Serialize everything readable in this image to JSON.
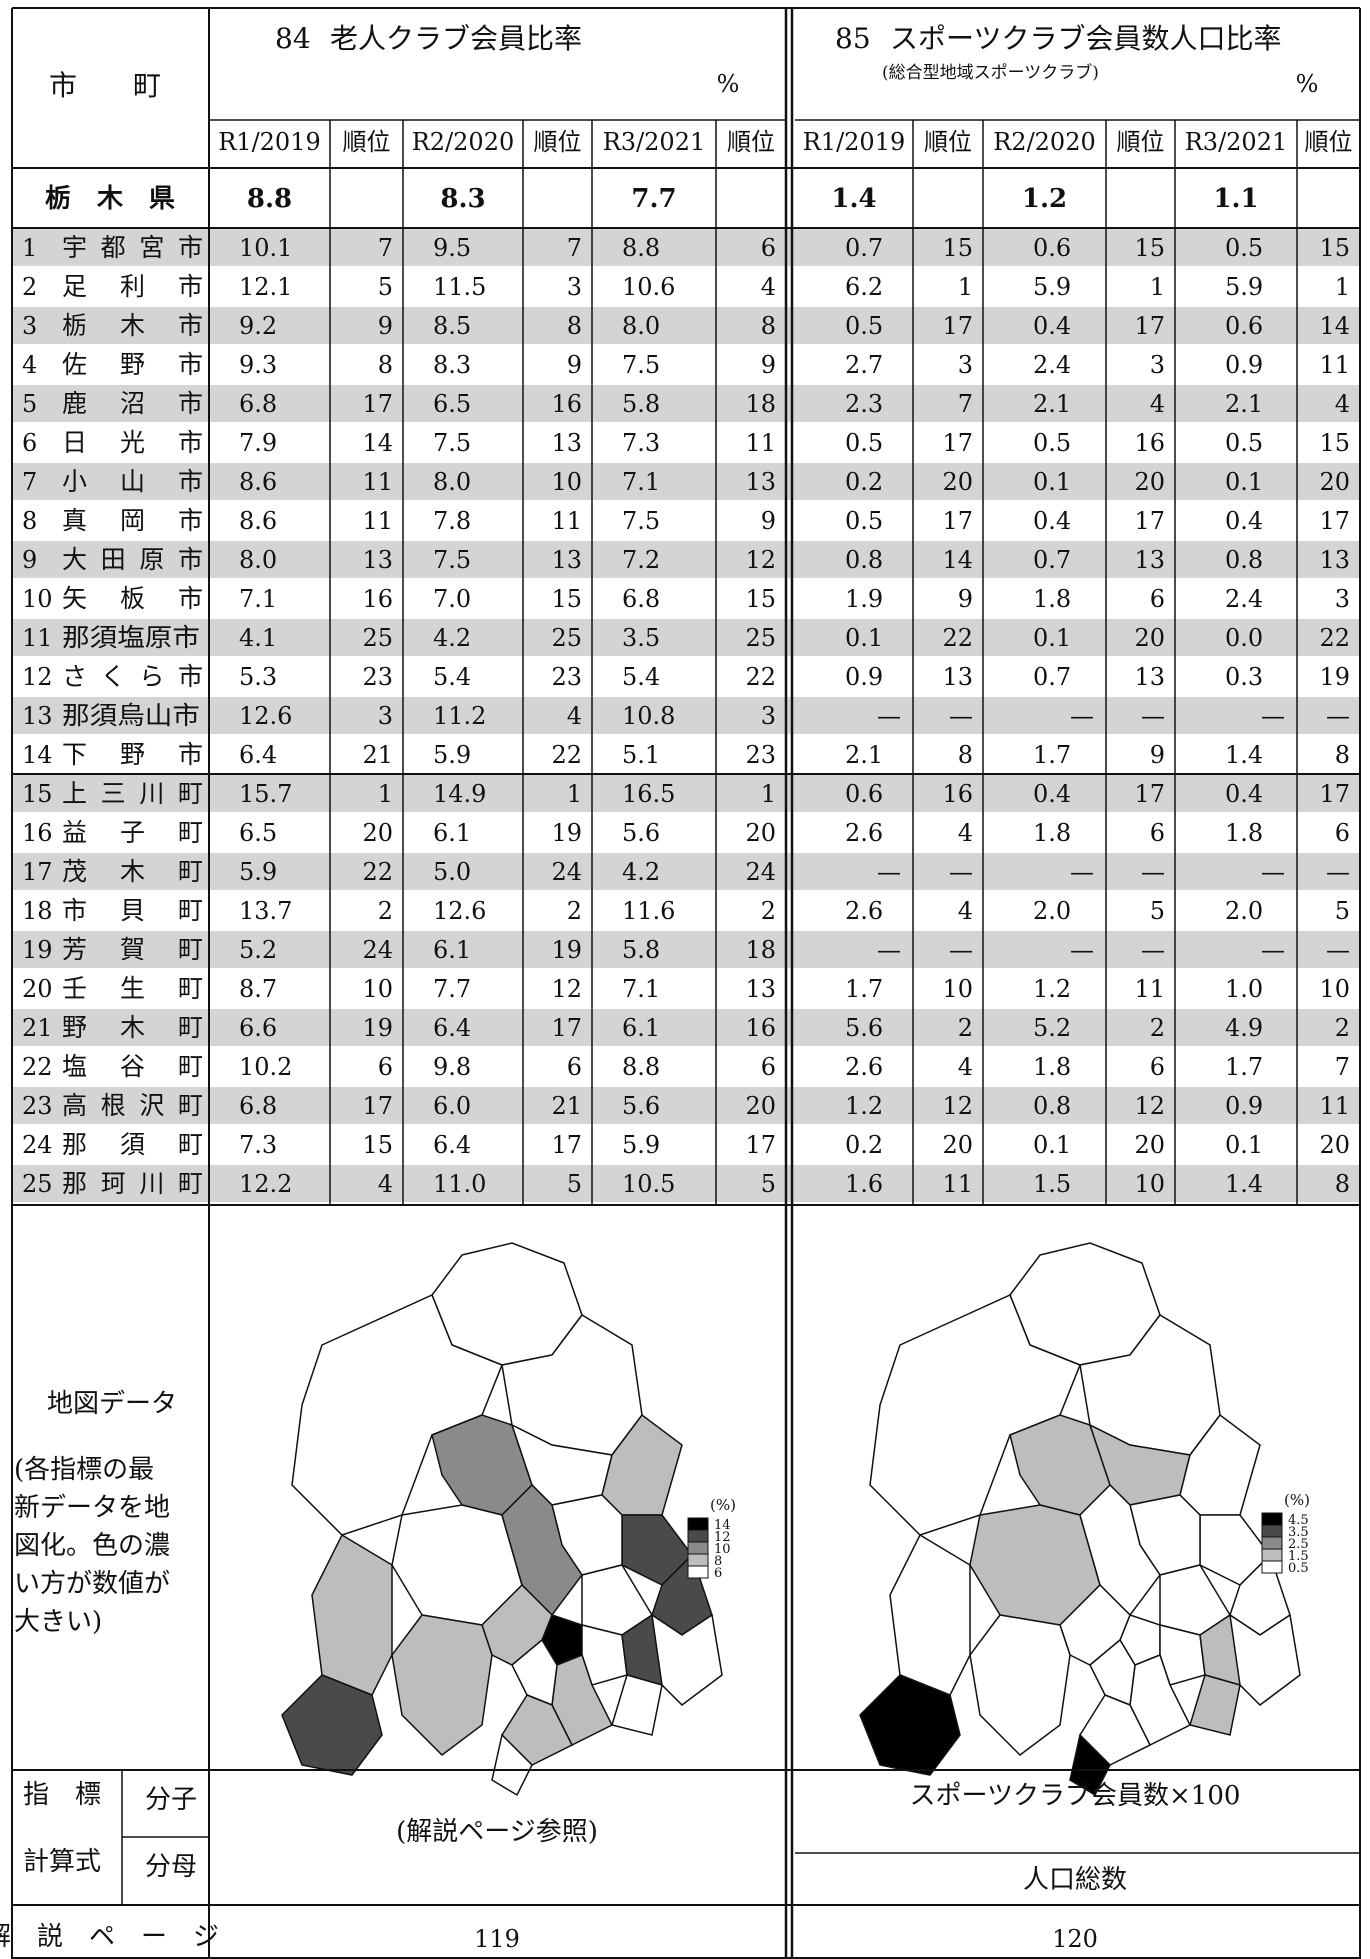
{
  "header": {
    "col_label": "市　　町",
    "ind1_num": "84",
    "ind1_title": "老人クラブ会員比率",
    "ind1_unit": "%",
    "ind2_num": "85",
    "ind2_title": "スポーツクラブ会員数人口比率",
    "ind2_subtitle": "(総合型地域スポーツクラブ)",
    "ind2_unit": "%",
    "years": [
      "R1/2019",
      "R2/2020",
      "R3/2021"
    ],
    "rank_label": "順位"
  },
  "prefecture": {
    "name": "栃　木　県",
    "ind1": [
      "8.8",
      "8.3",
      "7.7"
    ],
    "ind2": [
      "1.4",
      "1.2",
      "1.1"
    ]
  },
  "rows": [
    {
      "no": "1",
      "name": "宇都宮市",
      "v1": [
        "10.1",
        "7",
        "9.5",
        "7",
        "8.8",
        "6"
      ],
      "v2": [
        "0.7",
        "15",
        "0.6",
        "15",
        "0.5",
        "15"
      ]
    },
    {
      "no": "2",
      "name": "足利市",
      "v1": [
        "12.1",
        "5",
        "11.5",
        "3",
        "10.6",
        "4"
      ],
      "v2": [
        "6.2",
        "1",
        "5.9",
        "1",
        "5.9",
        "1"
      ]
    },
    {
      "no": "3",
      "name": "栃木市",
      "v1": [
        "9.2",
        "9",
        "8.5",
        "8",
        "8.0",
        "8"
      ],
      "v2": [
        "0.5",
        "17",
        "0.4",
        "17",
        "0.6",
        "14"
      ]
    },
    {
      "no": "4",
      "name": "佐野市",
      "v1": [
        "9.3",
        "8",
        "8.3",
        "9",
        "7.5",
        "9"
      ],
      "v2": [
        "2.7",
        "3",
        "2.4",
        "3",
        "0.9",
        "11"
      ]
    },
    {
      "no": "5",
      "name": "鹿沼市",
      "v1": [
        "6.8",
        "17",
        "6.5",
        "16",
        "5.8",
        "18"
      ],
      "v2": [
        "2.3",
        "7",
        "2.1",
        "4",
        "2.1",
        "4"
      ]
    },
    {
      "no": "6",
      "name": "日光市",
      "v1": [
        "7.9",
        "14",
        "7.5",
        "13",
        "7.3",
        "11"
      ],
      "v2": [
        "0.5",
        "17",
        "0.5",
        "16",
        "0.5",
        "15"
      ]
    },
    {
      "no": "7",
      "name": "小山市",
      "v1": [
        "8.6",
        "11",
        "8.0",
        "10",
        "7.1",
        "13"
      ],
      "v2": [
        "0.2",
        "20",
        "0.1",
        "20",
        "0.1",
        "20"
      ]
    },
    {
      "no": "8",
      "name": "真岡市",
      "v1": [
        "8.6",
        "11",
        "7.8",
        "11",
        "7.5",
        "9"
      ],
      "v2": [
        "0.5",
        "17",
        "0.4",
        "17",
        "0.4",
        "17"
      ]
    },
    {
      "no": "9",
      "name": "大田原市",
      "v1": [
        "8.0",
        "13",
        "7.5",
        "13",
        "7.2",
        "12"
      ],
      "v2": [
        "0.8",
        "14",
        "0.7",
        "13",
        "0.8",
        "13"
      ]
    },
    {
      "no": "10",
      "name": "矢板市",
      "v1": [
        "7.1",
        "16",
        "7.0",
        "15",
        "6.8",
        "15"
      ],
      "v2": [
        "1.9",
        "9",
        "1.8",
        "6",
        "2.4",
        "3"
      ]
    },
    {
      "no": "11",
      "name": "那須塩原市",
      "v1": [
        "4.1",
        "25",
        "4.2",
        "25",
        "3.5",
        "25"
      ],
      "v2": [
        "0.1",
        "22",
        "0.1",
        "20",
        "0.0",
        "22"
      ]
    },
    {
      "no": "12",
      "name": "さくら市",
      "v1": [
        "5.3",
        "23",
        "5.4",
        "23",
        "5.4",
        "22"
      ],
      "v2": [
        "0.9",
        "13",
        "0.7",
        "13",
        "0.3",
        "19"
      ]
    },
    {
      "no": "13",
      "name": "那須烏山市",
      "v1": [
        "12.6",
        "3",
        "11.2",
        "4",
        "10.8",
        "3"
      ],
      "v2": [
        "—",
        "—",
        "—",
        "—",
        "—",
        "—"
      ]
    },
    {
      "no": "14",
      "name": "下野市",
      "v1": [
        "6.4",
        "21",
        "5.9",
        "22",
        "5.1",
        "23"
      ],
      "v2": [
        "2.1",
        "8",
        "1.7",
        "9",
        "1.4",
        "8"
      ]
    },
    {
      "no": "15",
      "name": "上三川町",
      "v1": [
        "15.7",
        "1",
        "14.9",
        "1",
        "16.5",
        "1"
      ],
      "v2": [
        "0.6",
        "16",
        "0.4",
        "17",
        "0.4",
        "17"
      ]
    },
    {
      "no": "16",
      "name": "益子町",
      "v1": [
        "6.5",
        "20",
        "6.1",
        "19",
        "5.6",
        "20"
      ],
      "v2": [
        "2.6",
        "4",
        "1.8",
        "6",
        "1.8",
        "6"
      ]
    },
    {
      "no": "17",
      "name": "茂木町",
      "v1": [
        "5.9",
        "22",
        "5.0",
        "24",
        "4.2",
        "24"
      ],
      "v2": [
        "—",
        "—",
        "—",
        "—",
        "—",
        "—"
      ]
    },
    {
      "no": "18",
      "name": "市貝町",
      "v1": [
        "13.7",
        "2",
        "12.6",
        "2",
        "11.6",
        "2"
      ],
      "v2": [
        "2.6",
        "4",
        "2.0",
        "5",
        "2.0",
        "5"
      ]
    },
    {
      "no": "19",
      "name": "芳賀町",
      "v1": [
        "5.2",
        "24",
        "6.1",
        "19",
        "5.8",
        "18"
      ],
      "v2": [
        "—",
        "—",
        "—",
        "—",
        "—",
        "—"
      ]
    },
    {
      "no": "20",
      "name": "壬生町",
      "v1": [
        "8.7",
        "10",
        "7.7",
        "12",
        "7.1",
        "13"
      ],
      "v2": [
        "1.7",
        "10",
        "1.2",
        "11",
        "1.0",
        "10"
      ]
    },
    {
      "no": "21",
      "name": "野木町",
      "v1": [
        "6.6",
        "19",
        "6.4",
        "17",
        "6.1",
        "16"
      ],
      "v2": [
        "5.6",
        "2",
        "5.2",
        "2",
        "4.9",
        "2"
      ]
    },
    {
      "no": "22",
      "name": "塩谷町",
      "v1": [
        "10.2",
        "6",
        "9.8",
        "6",
        "8.8",
        "6"
      ],
      "v2": [
        "2.6",
        "4",
        "1.8",
        "6",
        "1.7",
        "7"
      ]
    },
    {
      "no": "23",
      "name": "高根沢町",
      "v1": [
        "6.8",
        "17",
        "6.0",
        "21",
        "5.6",
        "20"
      ],
      "v2": [
        "1.2",
        "12",
        "0.8",
        "12",
        "0.9",
        "11"
      ]
    },
    {
      "no": "24",
      "name": "那須町",
      "v1": [
        "7.3",
        "15",
        "6.4",
        "17",
        "5.9",
        "17"
      ],
      "v2": [
        "0.2",
        "20",
        "0.1",
        "20",
        "0.1",
        "20"
      ]
    },
    {
      "no": "25",
      "name": "那珂川町",
      "v1": [
        "12.2",
        "4",
        "11.0",
        "5",
        "10.5",
        "5"
      ],
      "v2": [
        "1.6",
        "11",
        "1.5",
        "10",
        "1.4",
        "8"
      ]
    }
  ],
  "map_section": {
    "label": "地図データ",
    "note": "(各指標の最新データを地図化。色の濃い方が数値が大きい)",
    "legend1_unit": "(%)",
    "legend1_values": [
      "14",
      "12",
      "10",
      "8",
      "6"
    ],
    "legend2_unit": "(%)",
    "legend2_values": [
      "4.5",
      "3.5",
      "2.5",
      "1.5",
      "0.5"
    ],
    "colors": [
      "#000000",
      "#4a4a4a",
      "#8a8a8a",
      "#bdbdbd",
      "#ffffff"
    ]
  },
  "footer": {
    "indicator_label": "指　標",
    "formula_label": "計算式",
    "numerator_label": "分子",
    "denominator_label": "分母",
    "ind1_formula": "(解説ページ参照)",
    "ind2_numerator": "スポーツクラブ会員数×100",
    "ind2_denominator": "人口総数",
    "page_label": "解　説　ペ　ー　ジ",
    "ind1_page": "119",
    "ind2_page": "120"
  }
}
